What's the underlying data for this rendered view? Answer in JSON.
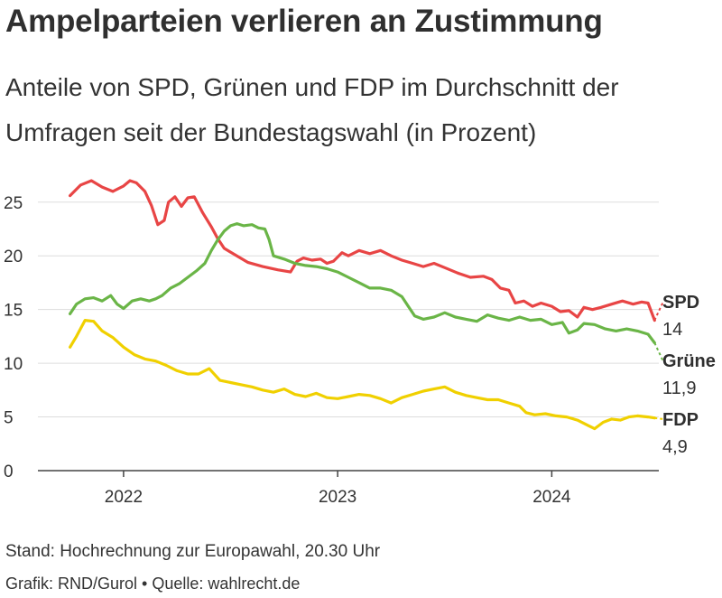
{
  "header": {
    "title": "Ampelparteien verlieren an Zustimmung",
    "subtitle": "Anteile von SPD, Grünen und FDP im Durchschnitt der Umfragen seit der Bundestagswahl (in Prozent)"
  },
  "footer": {
    "note": "Stand: Hochrechnung zur Europawahl, 20.30 Uhr",
    "credit": "Grafik: RND/Gurol • Quelle: wahlrecht.de"
  },
  "chart_data": {
    "type": "line",
    "title": "Ampelparteien verlieren an Zustimmung",
    "subtitle": "Anteile von SPD, Grünen und FDP im Durchschnitt der Umfragen seit der Bundestagswahl (in Prozent)",
    "xlabel": "",
    "ylabel": "",
    "xlim": [
      2021.6,
      2024.5
    ],
    "ylim": [
      0,
      27
    ],
    "yticks": [
      0,
      5,
      10,
      15,
      20,
      25
    ],
    "xticks": [
      {
        "value": 2022,
        "label": "2022"
      },
      {
        "value": 2023,
        "label": "2023"
      },
      {
        "value": 2024,
        "label": "2024"
      }
    ],
    "grid": true,
    "legend": "end-labels-right",
    "series": [
      {
        "name": "SPD",
        "color": "#e84545",
        "end_label": "SPD",
        "end_value": "14",
        "end_point": [
          2024.52,
          15.7
        ],
        "points": [
          [
            2021.75,
            25.6
          ],
          [
            2021.8,
            26.6
          ],
          [
            2021.85,
            27.0
          ],
          [
            2021.9,
            26.4
          ],
          [
            2021.95,
            26.0
          ],
          [
            2022.0,
            26.5
          ],
          [
            2022.03,
            27.0
          ],
          [
            2022.06,
            26.8
          ],
          [
            2022.1,
            26.0
          ],
          [
            2022.13,
            24.7
          ],
          [
            2022.16,
            22.9
          ],
          [
            2022.19,
            23.3
          ],
          [
            2022.21,
            25.0
          ],
          [
            2022.24,
            25.5
          ],
          [
            2022.27,
            24.6
          ],
          [
            2022.3,
            25.4
          ],
          [
            2022.33,
            25.5
          ],
          [
            2022.37,
            24.0
          ],
          [
            2022.41,
            22.7
          ],
          [
            2022.44,
            21.6
          ],
          [
            2022.47,
            20.7
          ],
          [
            2022.52,
            20.1
          ],
          [
            2022.58,
            19.4
          ],
          [
            2022.65,
            19.0
          ],
          [
            2022.72,
            18.7
          ],
          [
            2022.78,
            18.5
          ],
          [
            2022.81,
            19.5
          ],
          [
            2022.84,
            19.8
          ],
          [
            2022.88,
            19.6
          ],
          [
            2022.92,
            19.7
          ],
          [
            2022.95,
            19.3
          ],
          [
            2022.98,
            19.5
          ],
          [
            2023.02,
            20.3
          ],
          [
            2023.05,
            20.0
          ],
          [
            2023.1,
            20.5
          ],
          [
            2023.15,
            20.2
          ],
          [
            2023.2,
            20.5
          ],
          [
            2023.25,
            20.0
          ],
          [
            2023.3,
            19.6
          ],
          [
            2023.35,
            19.3
          ],
          [
            2023.4,
            19.0
          ],
          [
            2023.45,
            19.3
          ],
          [
            2023.5,
            18.9
          ],
          [
            2023.56,
            18.4
          ],
          [
            2023.62,
            18.0
          ],
          [
            2023.68,
            18.1
          ],
          [
            2023.72,
            17.8
          ],
          [
            2023.76,
            17.0
          ],
          [
            2023.8,
            16.8
          ],
          [
            2023.83,
            15.6
          ],
          [
            2023.87,
            15.8
          ],
          [
            2023.91,
            15.3
          ],
          [
            2023.95,
            15.6
          ],
          [
            2024.0,
            15.3
          ],
          [
            2024.04,
            14.8
          ],
          [
            2024.08,
            14.9
          ],
          [
            2024.12,
            14.3
          ],
          [
            2024.15,
            15.2
          ],
          [
            2024.19,
            15.0
          ],
          [
            2024.23,
            15.2
          ],
          [
            2024.28,
            15.5
          ],
          [
            2024.33,
            15.8
          ],
          [
            2024.38,
            15.5
          ],
          [
            2024.42,
            15.7
          ],
          [
            2024.45,
            15.6
          ],
          [
            2024.48,
            14.0
          ]
        ]
      },
      {
        "name": "Grüne",
        "color": "#6ab547",
        "end_label": "Grüne",
        "end_value": "11,9",
        "end_point": [
          2024.52,
          10.2
        ],
        "points": [
          [
            2021.75,
            14.6
          ],
          [
            2021.78,
            15.5
          ],
          [
            2021.82,
            16.0
          ],
          [
            2021.86,
            16.1
          ],
          [
            2021.9,
            15.8
          ],
          [
            2021.94,
            16.3
          ],
          [
            2021.97,
            15.5
          ],
          [
            2022.0,
            15.1
          ],
          [
            2022.04,
            15.8
          ],
          [
            2022.08,
            16.0
          ],
          [
            2022.12,
            15.8
          ],
          [
            2022.15,
            16.0
          ],
          [
            2022.18,
            16.3
          ],
          [
            2022.22,
            17.0
          ],
          [
            2022.26,
            17.4
          ],
          [
            2022.3,
            18.0
          ],
          [
            2022.34,
            18.6
          ],
          [
            2022.38,
            19.3
          ],
          [
            2022.41,
            20.5
          ],
          [
            2022.44,
            21.5
          ],
          [
            2022.47,
            22.3
          ],
          [
            2022.5,
            22.8
          ],
          [
            2022.53,
            23.0
          ],
          [
            2022.56,
            22.8
          ],
          [
            2022.6,
            22.9
          ],
          [
            2022.63,
            22.6
          ],
          [
            2022.66,
            22.5
          ],
          [
            2022.68,
            21.5
          ],
          [
            2022.7,
            20.0
          ],
          [
            2022.75,
            19.7
          ],
          [
            2022.8,
            19.3
          ],
          [
            2022.85,
            19.1
          ],
          [
            2022.9,
            19.0
          ],
          [
            2022.95,
            18.8
          ],
          [
            2023.0,
            18.5
          ],
          [
            2023.05,
            18.0
          ],
          [
            2023.1,
            17.5
          ],
          [
            2023.15,
            17.0
          ],
          [
            2023.2,
            17.0
          ],
          [
            2023.25,
            16.8
          ],
          [
            2023.3,
            16.2
          ],
          [
            2023.33,
            15.3
          ],
          [
            2023.36,
            14.4
          ],
          [
            2023.4,
            14.1
          ],
          [
            2023.45,
            14.3
          ],
          [
            2023.5,
            14.7
          ],
          [
            2023.55,
            14.3
          ],
          [
            2023.6,
            14.1
          ],
          [
            2023.65,
            13.9
          ],
          [
            2023.7,
            14.5
          ],
          [
            2023.75,
            14.2
          ],
          [
            2023.8,
            14.0
          ],
          [
            2023.85,
            14.3
          ],
          [
            2023.9,
            14.0
          ],
          [
            2023.95,
            14.1
          ],
          [
            2024.0,
            13.6
          ],
          [
            2024.05,
            13.8
          ],
          [
            2024.08,
            12.8
          ],
          [
            2024.12,
            13.1
          ],
          [
            2024.15,
            13.7
          ],
          [
            2024.2,
            13.6
          ],
          [
            2024.25,
            13.2
          ],
          [
            2024.3,
            13.0
          ],
          [
            2024.35,
            13.2
          ],
          [
            2024.4,
            13.0
          ],
          [
            2024.45,
            12.7
          ],
          [
            2024.48,
            11.9
          ]
        ]
      },
      {
        "name": "FDP",
        "color": "#f0d000",
        "end_label": "FDP",
        "end_value": "4,9",
        "end_point": [
          2024.52,
          4.8
        ],
        "points": [
          [
            2021.75,
            11.5
          ],
          [
            2021.78,
            12.5
          ],
          [
            2021.82,
            14.0
          ],
          [
            2021.86,
            13.9
          ],
          [
            2021.9,
            13.0
          ],
          [
            2021.95,
            12.4
          ],
          [
            2022.0,
            11.5
          ],
          [
            2022.05,
            10.8
          ],
          [
            2022.1,
            10.4
          ],
          [
            2022.15,
            10.2
          ],
          [
            2022.2,
            9.8
          ],
          [
            2022.25,
            9.3
          ],
          [
            2022.3,
            9.0
          ],
          [
            2022.35,
            9.0
          ],
          [
            2022.4,
            9.5
          ],
          [
            2022.45,
            8.4
          ],
          [
            2022.5,
            8.2
          ],
          [
            2022.55,
            8.0
          ],
          [
            2022.6,
            7.8
          ],
          [
            2022.65,
            7.5
          ],
          [
            2022.7,
            7.3
          ],
          [
            2022.75,
            7.6
          ],
          [
            2022.8,
            7.1
          ],
          [
            2022.85,
            6.9
          ],
          [
            2022.9,
            7.2
          ],
          [
            2022.95,
            6.8
          ],
          [
            2023.0,
            6.7
          ],
          [
            2023.05,
            6.9
          ],
          [
            2023.1,
            7.1
          ],
          [
            2023.15,
            7.0
          ],
          [
            2023.2,
            6.7
          ],
          [
            2023.25,
            6.3
          ],
          [
            2023.3,
            6.8
          ],
          [
            2023.35,
            7.1
          ],
          [
            2023.4,
            7.4
          ],
          [
            2023.45,
            7.6
          ],
          [
            2023.5,
            7.8
          ],
          [
            2023.55,
            7.3
          ],
          [
            2023.6,
            7.0
          ],
          [
            2023.65,
            6.8
          ],
          [
            2023.7,
            6.6
          ],
          [
            2023.75,
            6.6
          ],
          [
            2023.8,
            6.3
          ],
          [
            2023.85,
            6.0
          ],
          [
            2023.88,
            5.4
          ],
          [
            2023.92,
            5.2
          ],
          [
            2023.97,
            5.3
          ],
          [
            2024.02,
            5.1
          ],
          [
            2024.07,
            5.0
          ],
          [
            2024.12,
            4.7
          ],
          [
            2024.17,
            4.2
          ],
          [
            2024.2,
            3.9
          ],
          [
            2024.24,
            4.5
          ],
          [
            2024.28,
            4.8
          ],
          [
            2024.32,
            4.7
          ],
          [
            2024.36,
            5.0
          ],
          [
            2024.4,
            5.1
          ],
          [
            2024.45,
            5.0
          ],
          [
            2024.48,
            4.9
          ]
        ]
      }
    ]
  }
}
